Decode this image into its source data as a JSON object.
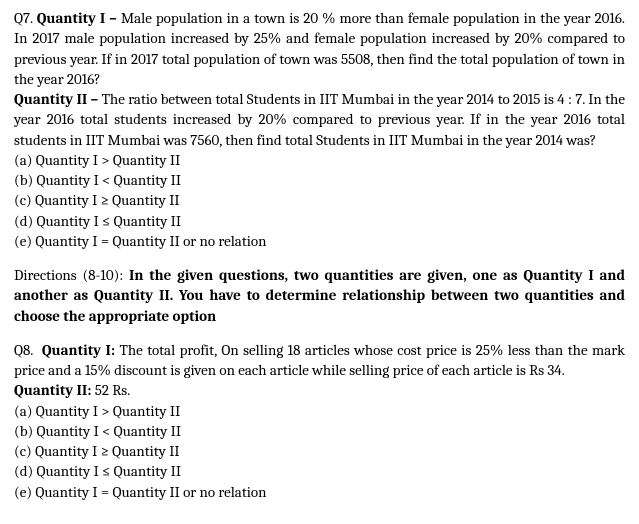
{
  "q7": {
    "label": "Q7.",
    "q1_label": "Quantity I –",
    "q1_text": " Male population in a town is 20 % more than female population in the year 2016. In 2017 male population increased by 25% and female population increased by 20% compared to previous year. If in 2017 total population of town was 5508, then find the total population of town in the year 2016?",
    "q2_label": "Quantity II –",
    "q2_text": "  The ratio between total Students in IIT Mumbai in the year  2014 to 2015 is 4 : 7. In the year 2016 total students increased by 20% compared to previous year. If in the year 2016 total students in IIT Mumbai was 7560, then find total Students in IIT Mumbai in the year  2014 was?",
    "options": {
      "a": "(a) Quantity I > Quantity II",
      "b": "(b) Quantity I < Quantity II",
      "c": "(c) Quantity I ≥ Quantity II",
      "d": "(d) Quantity I ≤ Quantity II",
      "e": "(e) Quantity I = Quantity II or no relation"
    }
  },
  "directions": {
    "prefix": "Directions (8-10): ",
    "text": "In the given questions, two quantities are given, one as Quantity I and another as Quantity II. You have to determine relationship between two quantities and choose the appropriate option"
  },
  "q8": {
    "label": "Q8.",
    "q1_label": "Quantity I:",
    "q1_text": " The total profit, On selling 18 articles whose cost price is 25% less than the mark price and a 15% discount is given on each article while selling price of each article is Rs 34.",
    "q2_label": "Quantity II:",
    "q2_text": "  52 Rs.",
    "options": {
      "a": "(a) Quantity I > Quantity II",
      "b": "(b) Quantity I < Quantity II",
      "c": "(c) Quantity I ≥ Quantity II",
      "d": "(d) Quantity I ≤ Quantity II",
      "e": "(e) Quantity I = Quantity II or no relation"
    }
  }
}
